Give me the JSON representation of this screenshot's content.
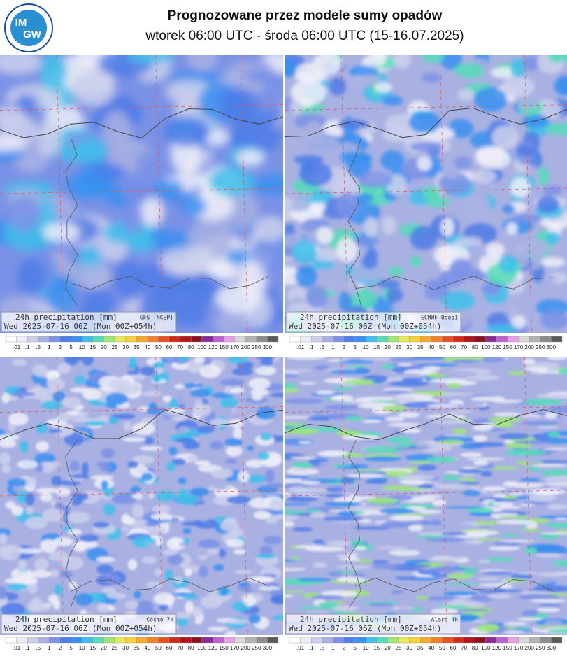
{
  "header": {
    "title": "Prognozowane przez modele sumy opadów",
    "subtitle": "wtorek 06:00 UTC - środa 06:00 UTC (15-16.07.2025)",
    "logo": [
      "IM",
      "GW"
    ]
  },
  "panels": [
    {
      "label": "24h precipitation  [mm]",
      "model": "GFS (NCEP)",
      "date": "Wed 2025-07-16 06Z (Mon 00Z+054h)"
    },
    {
      "label": "24h precipitation  [mm]",
      "model": "ECMWF 0deg1",
      "date": "Wed 2025-07-16 06Z (Mon 00Z+054h)"
    },
    {
      "label": "24h precipitation  [mm]",
      "model": "Cosmo 7k",
      "date": "Wed 2025-07-16 06Z (Mon 00Z+054h)"
    },
    {
      "label": "24h precipitation  [mm]",
      "model": "Alaro 4k",
      "date": "Wed 2025-07-16 06Z (Mon 00Z+054h)"
    }
  ],
  "scale": {
    "labels": [
      ".01",
      ".1",
      ".5",
      "1",
      "2",
      "5",
      "10",
      "15",
      "20",
      "25",
      "30",
      "35",
      "40",
      "50",
      "60",
      "70",
      "80",
      "100",
      "120",
      "150",
      "170",
      "200",
      "250",
      "300"
    ],
    "colors": [
      "#ffffff",
      "#eeeef8",
      "#cdd0ec",
      "#a9b1e3",
      "#7b92e6",
      "#4f7ce6",
      "#3a8ff0",
      "#3fc0ea",
      "#55dcb8",
      "#9ee67a",
      "#e6ea5a",
      "#f6d23c",
      "#f6a830",
      "#f08228",
      "#e65020",
      "#d22a1a",
      "#b0161a",
      "#8a1020",
      "#8a2a9a",
      "#c060d0",
      "#e6a0e6",
      "#d8d8d8",
      "#b4b4b4",
      "#8c8c8c",
      "#5a5a5a"
    ]
  }
}
